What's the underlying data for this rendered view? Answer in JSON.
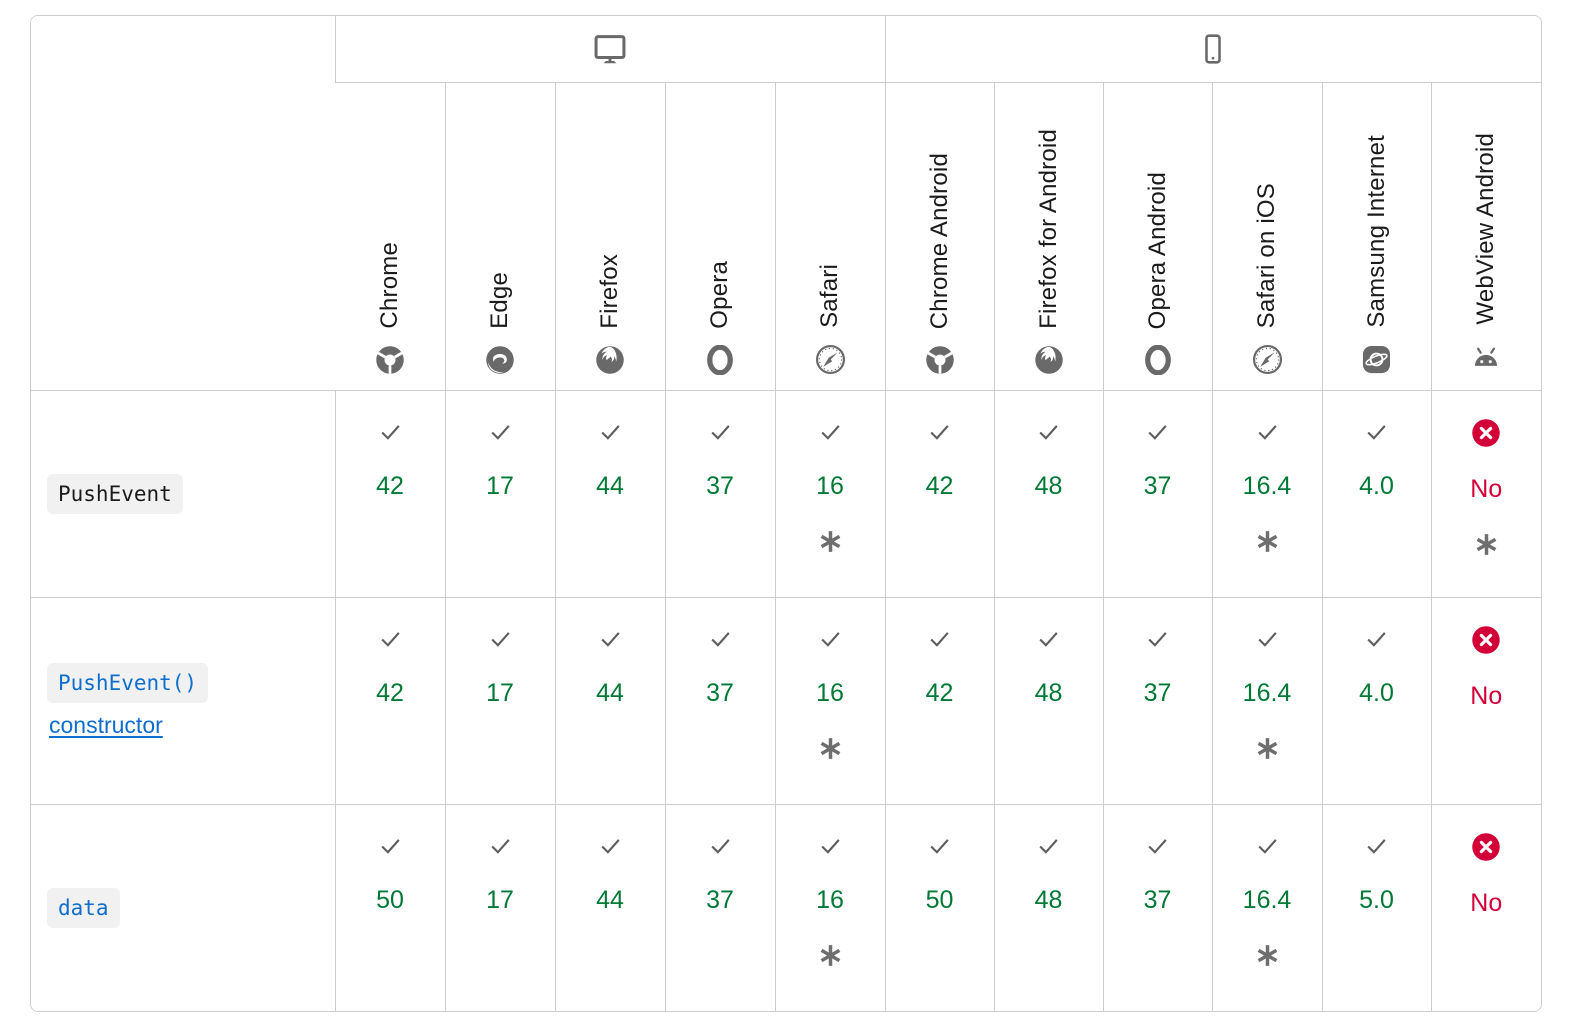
{
  "colors": {
    "border": "#cdcdcd",
    "supported_green": "#007936",
    "unsupported_red": "#d30038",
    "icon_gray": "#696969",
    "check_gray": "#5e5e5e",
    "link_blue": "#0d6ecd",
    "code_background": "#f2f1f1",
    "text": "#1b1b1b"
  },
  "table": {
    "groups": [
      {
        "id": "desktop",
        "icon": "desktop-icon",
        "colspan": 5
      },
      {
        "id": "mobile",
        "icon": "mobile-icon",
        "colspan": 6
      }
    ],
    "browsers": [
      {
        "label": "Chrome",
        "icon": "chrome-icon"
      },
      {
        "label": "Edge",
        "icon": "edge-icon"
      },
      {
        "label": "Firefox",
        "icon": "firefox-icon"
      },
      {
        "label": "Opera",
        "icon": "opera-icon"
      },
      {
        "label": "Safari",
        "icon": "safari-icon"
      },
      {
        "label": "Chrome Android",
        "icon": "chrome-icon"
      },
      {
        "label": "Firefox for Android",
        "icon": "firefox-icon"
      },
      {
        "label": "Opera Android",
        "icon": "opera-icon"
      },
      {
        "label": "Safari on iOS",
        "icon": "safari-icon"
      },
      {
        "label": "Samsung Internet",
        "icon": "samsung-internet-icon"
      },
      {
        "label": "WebView Android",
        "icon": "webview-android-icon"
      }
    ],
    "rows": [
      {
        "feature": {
          "code": "PushEvent",
          "extra": "",
          "link": false
        },
        "cells": [
          {
            "support": "yes",
            "version": "42",
            "footnote": false
          },
          {
            "support": "yes",
            "version": "17",
            "footnote": false
          },
          {
            "support": "yes",
            "version": "44",
            "footnote": false
          },
          {
            "support": "yes",
            "version": "37",
            "footnote": false
          },
          {
            "support": "yes",
            "version": "16",
            "footnote": true
          },
          {
            "support": "yes",
            "version": "42",
            "footnote": false
          },
          {
            "support": "yes",
            "version": "48",
            "footnote": false
          },
          {
            "support": "yes",
            "version": "37",
            "footnote": false
          },
          {
            "support": "yes",
            "version": "16.4",
            "footnote": true
          },
          {
            "support": "yes",
            "version": "4.0",
            "footnote": false
          },
          {
            "support": "no",
            "version": "No",
            "footnote": true
          }
        ]
      },
      {
        "feature": {
          "code": "PushEvent()",
          "extra": "constructor",
          "link": true
        },
        "cells": [
          {
            "support": "yes",
            "version": "42",
            "footnote": false
          },
          {
            "support": "yes",
            "version": "17",
            "footnote": false
          },
          {
            "support": "yes",
            "version": "44",
            "footnote": false
          },
          {
            "support": "yes",
            "version": "37",
            "footnote": false
          },
          {
            "support": "yes",
            "version": "16",
            "footnote": true
          },
          {
            "support": "yes",
            "version": "42",
            "footnote": false
          },
          {
            "support": "yes",
            "version": "48",
            "footnote": false
          },
          {
            "support": "yes",
            "version": "37",
            "footnote": false
          },
          {
            "support": "yes",
            "version": "16.4",
            "footnote": true
          },
          {
            "support": "yes",
            "version": "4.0",
            "footnote": false
          },
          {
            "support": "no",
            "version": "No",
            "footnote": false
          }
        ]
      },
      {
        "feature": {
          "code": "data",
          "extra": "",
          "link": true
        },
        "cells": [
          {
            "support": "yes",
            "version": "50",
            "footnote": false
          },
          {
            "support": "yes",
            "version": "17",
            "footnote": false
          },
          {
            "support": "yes",
            "version": "44",
            "footnote": false
          },
          {
            "support": "yes",
            "version": "37",
            "footnote": false
          },
          {
            "support": "yes",
            "version": "16",
            "footnote": true
          },
          {
            "support": "yes",
            "version": "50",
            "footnote": false
          },
          {
            "support": "yes",
            "version": "48",
            "footnote": false
          },
          {
            "support": "yes",
            "version": "37",
            "footnote": false
          },
          {
            "support": "yes",
            "version": "16.4",
            "footnote": true
          },
          {
            "support": "yes",
            "version": "5.0",
            "footnote": false
          },
          {
            "support": "no",
            "version": "No",
            "footnote": false
          }
        ]
      }
    ]
  }
}
